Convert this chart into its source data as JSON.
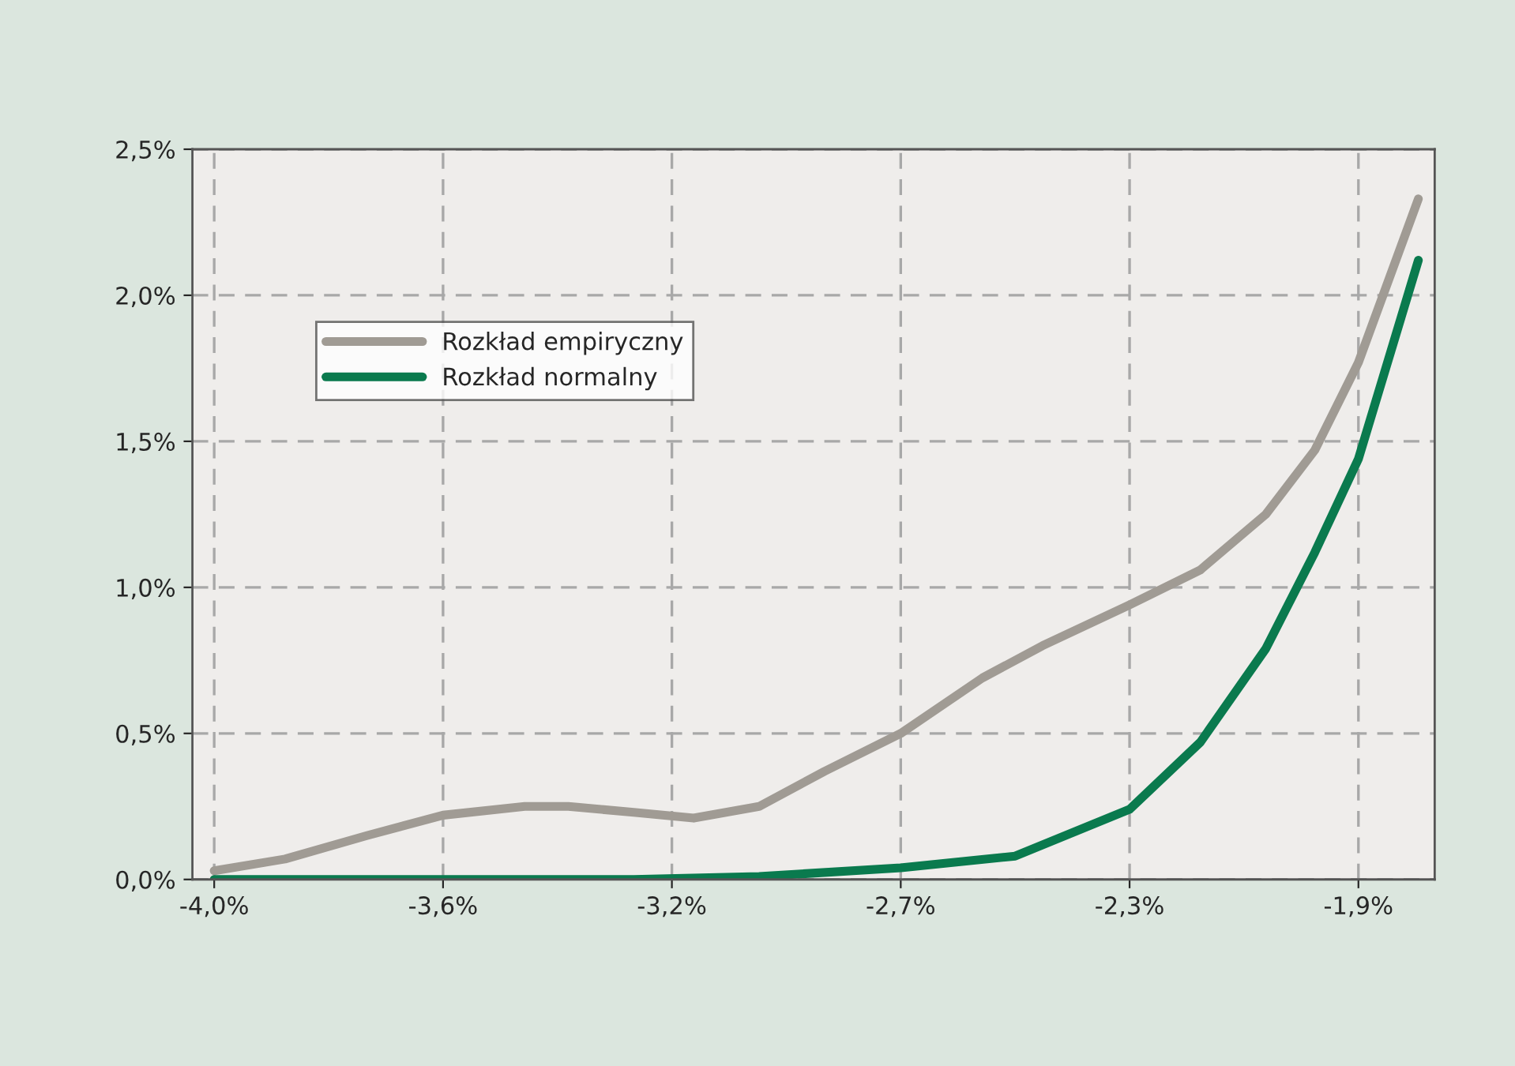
{
  "chart_data": {
    "type": "line",
    "series": [
      {
        "name": "Rozkład empiryczny",
        "color": "#a09b94",
        "x": [
          -4.0,
          -3.87,
          -3.72,
          -3.58,
          -3.43,
          -3.35,
          -3.23,
          -3.12,
          -3.0,
          -2.88,
          -2.74,
          -2.59,
          -2.48,
          -2.32,
          -2.19,
          -2.07,
          -1.98,
          -1.9,
          -1.79
        ],
        "values": [
          0.03,
          0.07,
          0.15,
          0.22,
          0.25,
          0.25,
          0.23,
          0.21,
          0.25,
          0.37,
          0.5,
          0.69,
          0.8,
          0.94,
          1.06,
          1.25,
          1.47,
          1.77,
          2.33
        ]
      },
      {
        "name": "Rozkład normalny",
        "color": "#0a7a4e",
        "x": [
          -4.0,
          -3.58,
          -3.23,
          -3.0,
          -2.74,
          -2.53,
          -2.32,
          -2.19,
          -2.07,
          -1.98,
          -1.9,
          -1.79
        ],
        "values": [
          0.0,
          0.0,
          0.0,
          0.01,
          0.04,
          0.08,
          0.24,
          0.47,
          0.79,
          1.12,
          1.44,
          2.12
        ]
      }
    ],
    "xlim": [
      -4.04,
      -1.76
    ],
    "xticks": [
      {
        "value": -4.0,
        "label": "-4,0%"
      },
      {
        "value": -3.58,
        "label": "-3,6%"
      },
      {
        "value": -3.16,
        "label": "-3,2%"
      },
      {
        "value": -2.74,
        "label": "-2,7%"
      },
      {
        "value": -2.32,
        "label": "-2,3%"
      },
      {
        "value": -1.9,
        "label": "-1,9%"
      }
    ],
    "ylim": [
      0,
      2.5
    ],
    "yticks": [
      {
        "value": 0,
        "label": "0,0%"
      },
      {
        "value": 0.5,
        "label": "0,5%"
      },
      {
        "value": 1.0,
        "label": "1,0%"
      },
      {
        "value": 1.5,
        "label": "1,5%"
      },
      {
        "value": 2.0,
        "label": "2,0%"
      },
      {
        "value": 2.5,
        "label": "2,5%"
      }
    ],
    "grid": true,
    "legend": "top left",
    "line_style": "solid"
  }
}
